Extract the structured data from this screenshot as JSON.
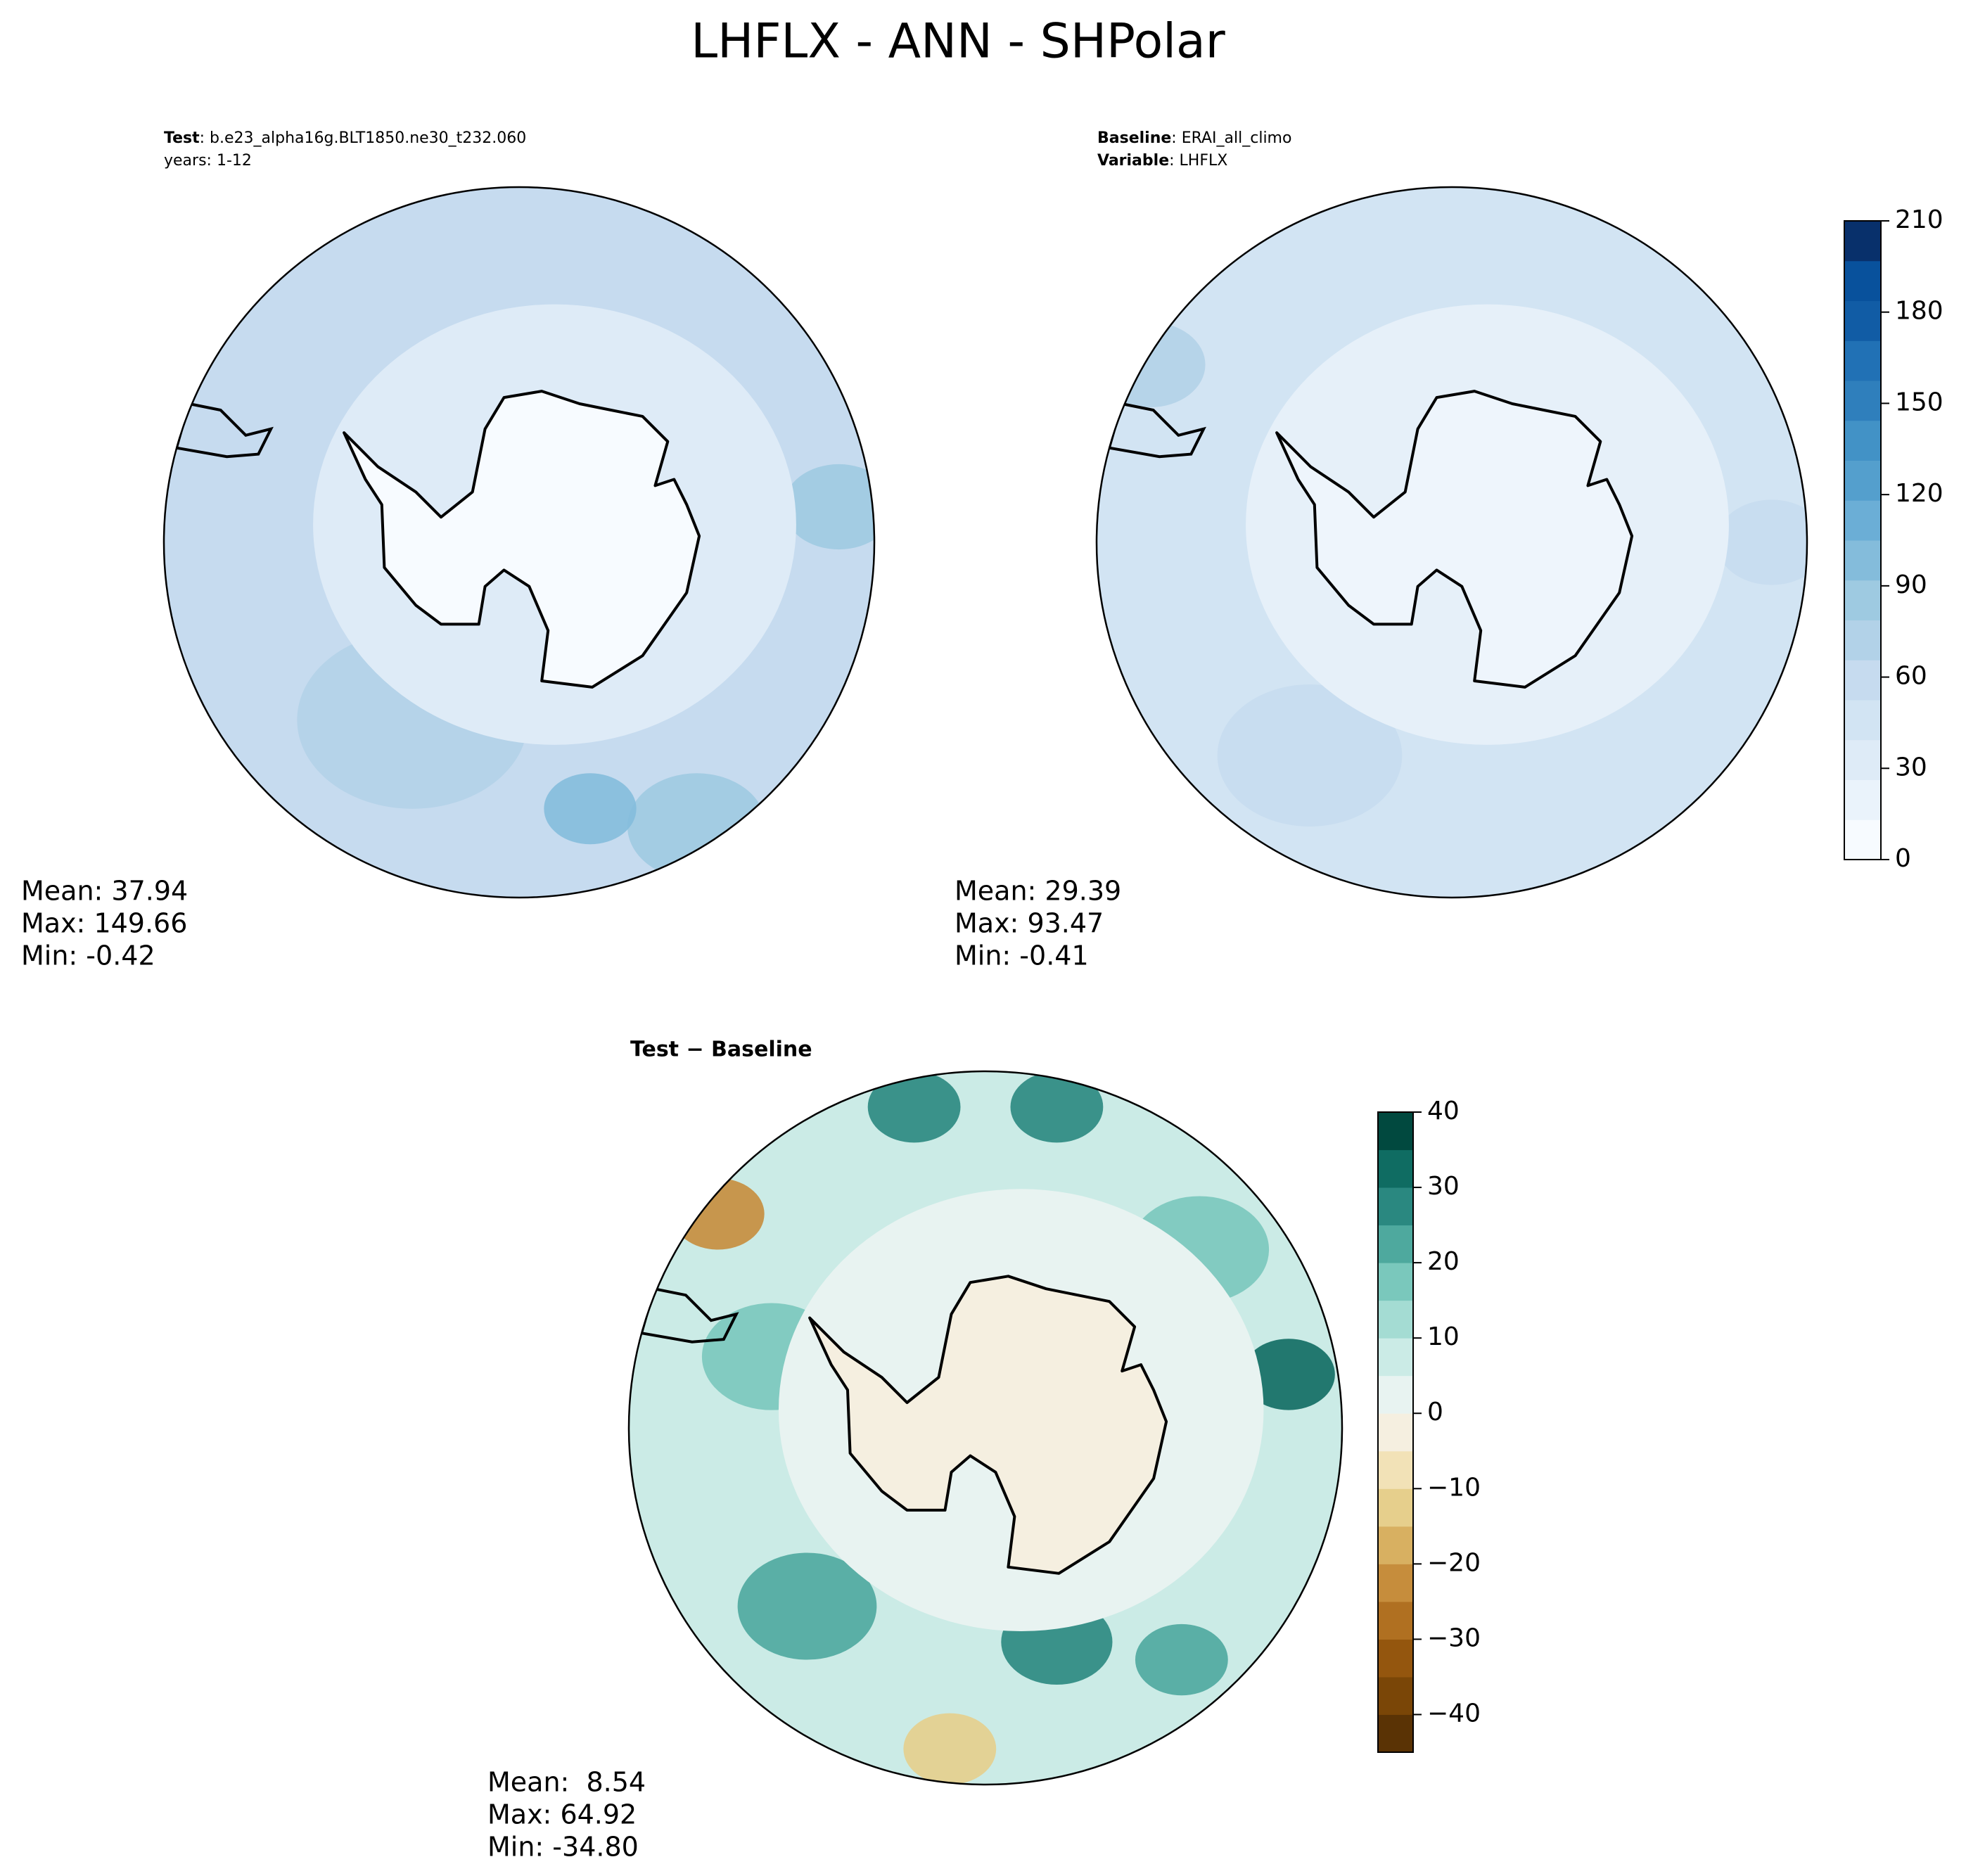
{
  "header": {
    "title": "LHFLX - ANN - SHPolar"
  },
  "panels": [
    {
      "label_1": "Test",
      "value_1": ": b.e23_alpha16g.BLT1850.ne30_t232.060",
      "label_2": "years: 1-12",
      "stats": [
        "Mean: 37.94",
        "Max: 149.66",
        "Min: -0.42"
      ]
    },
    {
      "label_1": "Baseline",
      "value_1": ": ERAI_all_climo",
      "label_2": "Variable",
      "value_2": ": LHFLX",
      "stats": [
        "Mean: 29.39",
        "Max: 93.47",
        "Min: -0.41"
      ]
    },
    {
      "label_1": "Test − Baseline",
      "stats": [
        "Mean:  8.54",
        "Max: 64.92",
        "Min: -34.80"
      ]
    }
  ],
  "colorbars": [
    {
      "lim": [
        0,
        210
      ],
      "ticks": [
        0,
        30,
        60,
        90,
        120,
        150,
        180,
        210
      ],
      "colors": [
        "#f7fbff",
        "#eaf3fb",
        "#deebf7",
        "#d2e4f3",
        "#c6dbef",
        "#b2d2e8",
        "#9ecae1",
        "#84bcdb",
        "#6baed6",
        "#549fcd",
        "#4292c6",
        "#2f7fbc",
        "#2171b5",
        "#115ca5",
        "#08519c",
        "#08306b"
      ]
    },
    {
      "lim": [
        -45,
        40
      ],
      "ticks": [
        {
          "value": -40,
          "label": "−40"
        },
        {
          "value": -30,
          "label": "−30"
        },
        {
          "value": -20,
          "label": "−20"
        },
        {
          "value": -10,
          "label": "−10"
        },
        0,
        10,
        20,
        30,
        40
      ],
      "colors": [
        "#5a3305",
        "#7a4607",
        "#94560e",
        "#b07021",
        "#c68d3c",
        "#d8b061",
        "#e6cf8c",
        "#f2e2b7",
        "#f5efe0",
        "#e8f3f1",
        "#cbebe6",
        "#a4dcd3",
        "#7ac8bc",
        "#4ea99e",
        "#2a8880",
        "#0f6c62",
        "#01493f"
      ]
    }
  ]
}
